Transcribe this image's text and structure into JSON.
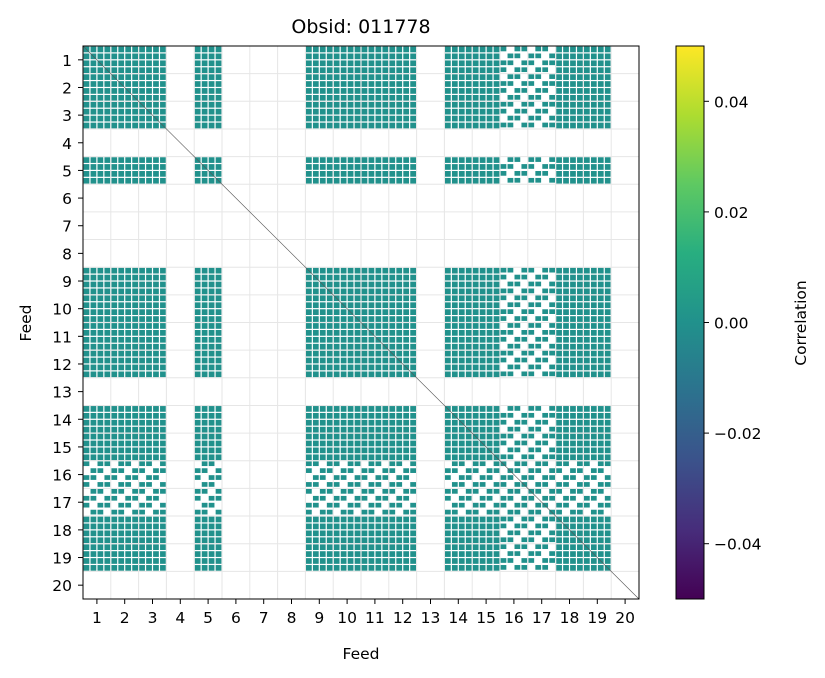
{
  "chart_data": {
    "type": "heatmap",
    "title": "Obsid: 011778",
    "xlabel": "Feed",
    "ylabel": "Feed",
    "x_categories": [
      "1",
      "2",
      "3",
      "4",
      "5",
      "6",
      "7",
      "8",
      "9",
      "10",
      "11",
      "12",
      "13",
      "14",
      "15",
      "16",
      "17",
      "18",
      "19",
      "20"
    ],
    "y_categories": [
      "1",
      "2",
      "3",
      "4",
      "5",
      "6",
      "7",
      "8",
      "9",
      "10",
      "11",
      "12",
      "13",
      "14",
      "15",
      "16",
      "17",
      "18",
      "19",
      "20"
    ],
    "colorbar": {
      "label": "Correlation",
      "colormap": "viridis",
      "vmin": -0.05,
      "vmax": 0.05,
      "ticks": [
        0.04,
        0.02,
        0.0,
        -0.02,
        -0.04
      ],
      "tick_labels": [
        "0.04",
        "0.02",
        "0.00",
        "−0.02",
        "−0.04"
      ]
    },
    "dominant_value": 0.0,
    "cell_color": "#21918c",
    "active_feeds": [
      1,
      2,
      3,
      5,
      9,
      10,
      11,
      12,
      14,
      15,
      16,
      17,
      18,
      19
    ],
    "partial_feeds": [
      16,
      17
    ],
    "inactive_feeds": [
      4,
      6,
      7,
      8,
      13,
      20
    ],
    "grid": true
  }
}
